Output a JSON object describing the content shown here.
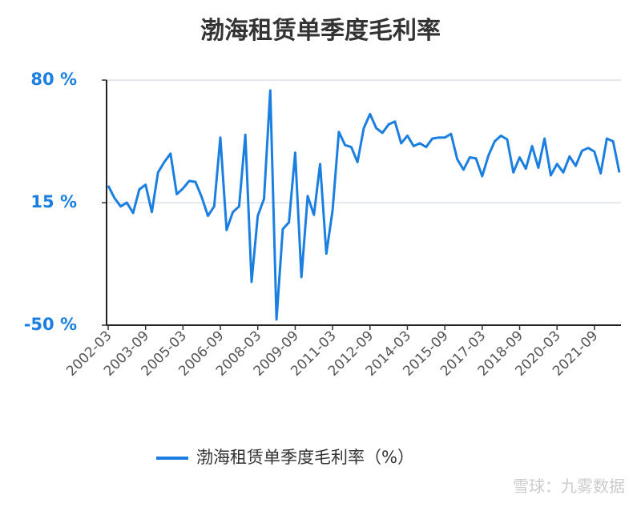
{
  "chart_data": {
    "type": "line",
    "title": "渤海租赁单季度毛利率",
    "watermark": "雪球：九雾数据",
    "categories": [
      "2002-03",
      null,
      null,
      null,
      null,
      null,
      "2003-09",
      null,
      null,
      null,
      null,
      null,
      "2005-03",
      null,
      null,
      null,
      null,
      null,
      "2006-09",
      null,
      null,
      null,
      null,
      null,
      "2008-03",
      null,
      null,
      null,
      null,
      null,
      "2009-09",
      null,
      null,
      null,
      null,
      null,
      "2011-03",
      null,
      null,
      null,
      null,
      null,
      "2012-09",
      null,
      null,
      null,
      null,
      null,
      "2014-03",
      null,
      null,
      null,
      null,
      null,
      "2015-09",
      null,
      null,
      null,
      null,
      null,
      "2017-03",
      null,
      null,
      null,
      null,
      null,
      "2018-09",
      null,
      null,
      null,
      null,
      null,
      "2020-03",
      null,
      null,
      null,
      null,
      null,
      "2021-09",
      null,
      null,
      null,
      null
    ],
    "series": [
      {
        "name": "渤海租赁单季度毛利率（%）",
        "color": "#1a7fe0",
        "values": [
          24,
          17.5,
          13,
          15,
          9.5,
          22,
          24.5,
          10,
          31,
          36.5,
          41,
          19.5,
          22.5,
          26.5,
          26,
          18,
          8,
          13,
          49.5,
          0.5,
          10,
          13,
          51,
          -27,
          8,
          17,
          74.5,
          -47,
          1,
          4.5,
          41.5,
          -24.5,
          18.5,
          8.5,
          35.5,
          -12,
          11,
          52.5,
          45.5,
          44.5,
          36.5,
          54.5,
          62,
          54.5,
          52,
          56.5,
          58,
          46.5,
          50.5,
          45,
          46.5,
          44.5,
          49,
          49.5,
          49.5,
          51.5,
          38,
          32.5,
          39,
          38.5,
          29,
          40,
          47.5,
          50.5,
          48.5,
          31,
          39,
          33,
          45,
          33.5,
          49,
          29.5,
          35.5,
          31,
          39.5,
          34.5,
          42.5,
          44,
          42,
          30.5,
          49,
          47.5,
          31
        ]
      }
    ],
    "ylim": [
      -50,
      80
    ],
    "yticks": [
      {
        "value": -50,
        "label": "-50 %"
      },
      {
        "value": 15,
        "label": "15 %"
      },
      {
        "value": 80,
        "label": "80 %"
      }
    ],
    "grid": true,
    "legend": "bottom"
  }
}
